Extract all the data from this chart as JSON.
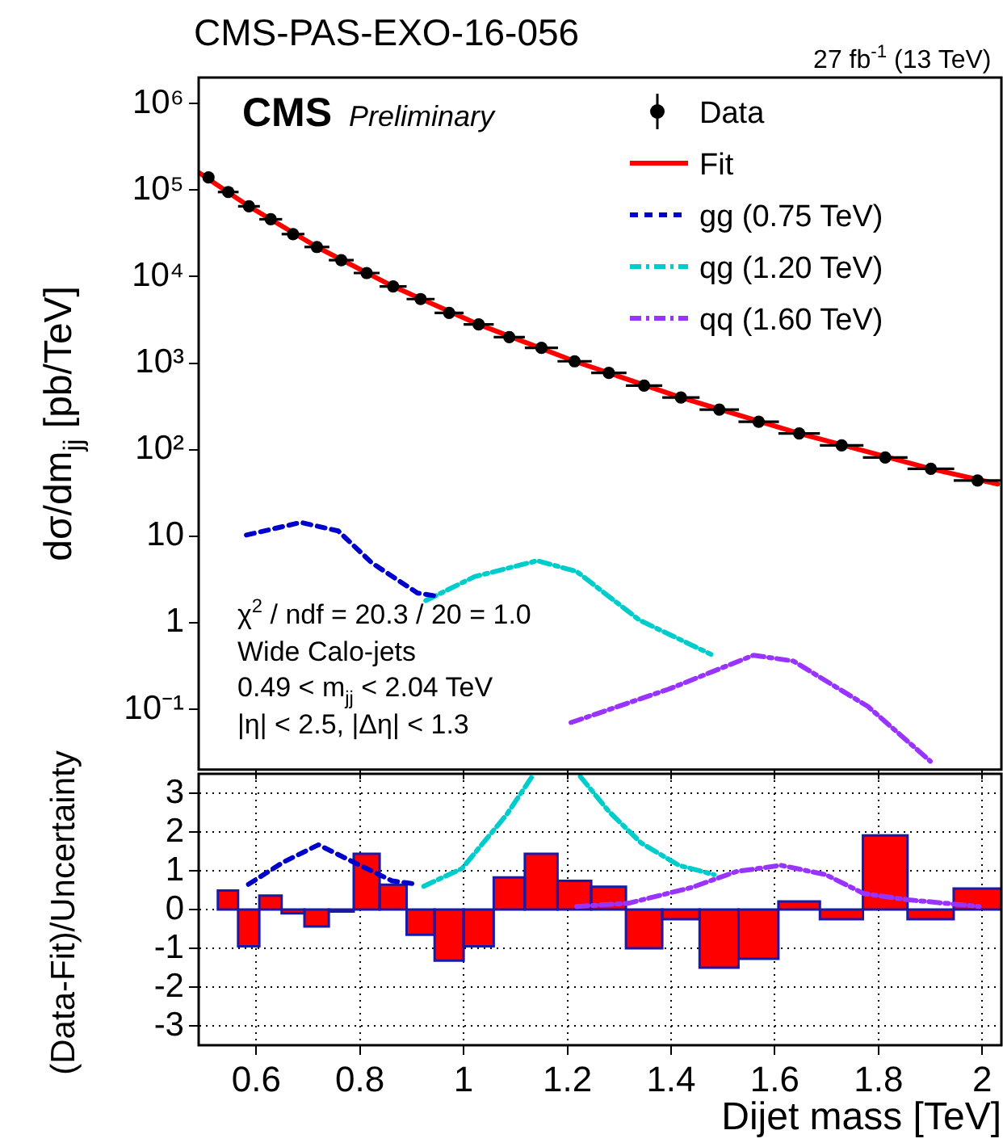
{
  "chart_data": [
    {
      "type": "scatter",
      "title": "CMS-PAS-EXO-16-056",
      "ylabel": "dσ/dm$_{jj}$ [pb/TeV]",
      "annotations": [
        "CMS",
        "Preliminary",
        "27 fb$^{-1}$ (13 TeV)",
        "χ$^{2}$ / ndf = 20.3 / 20 = 1.0",
        "Wide Calo-jets",
        "0.49 < m$_{jj}$ < 2.04 TeV",
        "|η| < 2.5, |Δη| < 1.3"
      ],
      "log": "y",
      "xlim": [
        0.489,
        2.037
      ],
      "xticks": [
        0.6,
        0.8,
        1,
        1.2,
        1.4,
        1.6,
        1.8,
        2
      ],
      "ylim": [
        0.02,
        2000000
      ],
      "yticks": [
        {
          "value": 0.1,
          "label": "10⁻¹"
        },
        1,
        10,
        {
          "value": 100,
          "label": "10²"
        },
        {
          "value": 1000,
          "label": "10³"
        },
        {
          "value": 10000,
          "label": "10⁴"
        },
        {
          "value": 100000,
          "label": "10⁵"
        },
        {
          "value": 1000000,
          "label": "10⁶"
        }
      ],
      "tick_labels": "y",
      "legend": "top right",
      "series": [
        {
          "name": "Data",
          "type": "scatter",
          "color": "#000000",
          "marker": "circle",
          "x": [
            0.508,
            0.546,
            0.586,
            0.628,
            0.671,
            0.717,
            0.764,
            0.813,
            0.864,
            0.917,
            0.972,
            1.029,
            1.088,
            1.15,
            1.214,
            1.28,
            1.348,
            1.419,
            1.493,
            1.569,
            1.647,
            1.729,
            1.813,
            1.901,
            1.991
          ],
          "values": [
            140000,
            95000,
            65000,
            46000,
            31000,
            22000,
            15500,
            11000,
            7700,
            5500,
            3800,
            2800,
            2000,
            1500,
            1050,
            770,
            550,
            400,
            290,
            210,
            154,
            112,
            81,
            60,
            44
          ],
          "xerrors": [
            null,
            0.02,
            0.021,
            0.022,
            0.022,
            0.024,
            0.024,
            0.025,
            0.026,
            0.027,
            0.028,
            0.029,
            0.03,
            0.032,
            0.033,
            0.034,
            0.035,
            0.036,
            0.038,
            0.039,
            0.04,
            0.042,
            0.043,
            0.045,
            0.046
          ]
        },
        {
          "name": "Fit",
          "type": "line",
          "color": "#ff0000",
          "marker": "none",
          "line_style": "solid",
          "x": [
            0.489,
            0.586,
            0.717,
            0.864,
            1.029,
            1.214,
            1.419,
            1.647,
            1.901,
            2.03
          ],
          "values": [
            160000,
            65000,
            22000,
            7700,
            2800,
            1050,
            400,
            154,
            60,
            40
          ]
        },
        {
          "name": "gg (0.75 TeV)",
          "type": "line",
          "color": "#0000cc",
          "marker": "none",
          "line_style": "dashed",
          "x": [
            0.581,
            0.686,
            0.758,
            0.823,
            0.911,
            0.954
          ],
          "values": [
            10.3,
            14.4,
            11.5,
            4.9,
            2.2,
            2.0
          ]
        },
        {
          "name": "qg (1.20 TeV)",
          "type": "line",
          "color": "#00cccc",
          "marker": "none",
          "line_style": "dotted",
          "x": [
            0.927,
            1.021,
            1.142,
            1.218,
            1.339,
            1.477
          ],
          "values": [
            1.8,
            3.4,
            5.2,
            3.9,
            1.07,
            0.43
          ]
        },
        {
          "name": "qq (1.60 TeV)",
          "type": "line",
          "color": "#9933ff",
          "marker": "none",
          "line_style": "dotted",
          "x": [
            1.207,
            1.395,
            1.559,
            1.636,
            1.78,
            1.9
          ],
          "values": [
            0.07,
            0.17,
            0.42,
            0.36,
            0.107,
            0.025
          ]
        }
      ]
    },
    {
      "type": "histogram",
      "xlabel": "Dijet mass [TeV]",
      "ylabel": "(Data-Fit)/Uncertainty",
      "xlim": [
        0.489,
        2.037
      ],
      "xticks": [
        0.6,
        0.8,
        1,
        1.2,
        1.4,
        1.6,
        1.8,
        2
      ],
      "ylim": [
        -3.5,
        3.5
      ],
      "yticks": [
        -3,
        -2,
        -1,
        0,
        1,
        2,
        3
      ],
      "grid": true,
      "bins": [
        0.526,
        0.565,
        0.606,
        0.649,
        0.693,
        0.74,
        0.788,
        0.838,
        0.89,
        0.944,
        1.0,
        1.058,
        1.118,
        1.181,
        1.246,
        1.313,
        1.383,
        1.455,
        1.53,
        1.607,
        1.687,
        1.77,
        1.856,
        1.945,
        2.037
      ],
      "values": [
        0.49,
        -0.95,
        0.36,
        -0.1,
        -0.44,
        -0.05,
        1.44,
        0.64,
        -0.65,
        -1.32,
        -0.95,
        0.83,
        1.44,
        0.74,
        0.59,
        -1.0,
        -0.25,
        -1.5,
        -1.27,
        0.21,
        -0.25,
        1.91,
        -0.25,
        0.54
      ],
      "color": "#ff0000",
      "series": [
        {
          "type": "line",
          "color": "#0000cc",
          "line_style": "dashed",
          "x": [
            0.585,
            0.652,
            0.72,
            0.8,
            0.862,
            0.911
          ],
          "values": [
            0.65,
            1.22,
            1.67,
            1.14,
            0.74,
            0.65
          ]
        },
        {
          "type": "line",
          "color": "#00cccc",
          "line_style": "dotted",
          "x": [
            0.923,
            0.997,
            1.083,
            1.132,
            1.18,
            1.225,
            1.28,
            1.342,
            1.415,
            1.483
          ],
          "values": [
            0.6,
            1.06,
            2.45,
            3.43,
            null,
            3.43,
            2.53,
            1.72,
            1.14,
            0.9
          ]
        },
        {
          "type": "line",
          "color": "#9933ff",
          "line_style": "dotted",
          "x": [
            1.218,
            1.317,
            1.44,
            1.526,
            1.612,
            1.698,
            1.772,
            1.858,
            1.994
          ],
          "values": [
            0.08,
            0.16,
            0.57,
            0.98,
            1.14,
            0.9,
            0.41,
            0.25,
            0.08
          ]
        }
      ]
    }
  ]
}
